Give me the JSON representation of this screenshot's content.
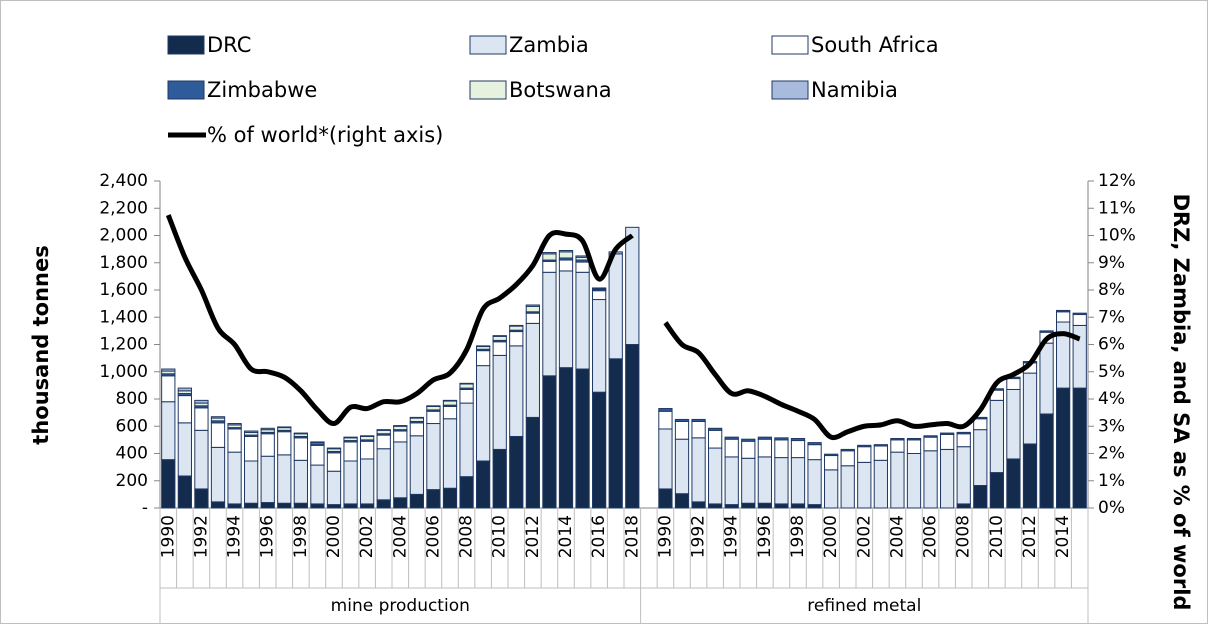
{
  "chart_data": {
    "type": "bar",
    "stacked": true,
    "ylabel": "thousand tonnes",
    "y2label": "DRZ, Zambia, and SA as % of world",
    "ylim": [
      0,
      2400
    ],
    "yticks": [
      {
        "value": 0,
        "label": "-"
      },
      200,
      400,
      600,
      800,
      {
        "value": 1000,
        "label": "1,000"
      },
      {
        "value": 1200,
        "label": "1,200"
      },
      {
        "value": 1400,
        "label": "1,400"
      },
      {
        "value": 1600,
        "label": "1,600"
      },
      {
        "value": 1800,
        "label": "1,800"
      },
      {
        "value": 2000,
        "label": "2,000"
      },
      {
        "value": 2200,
        "label": "2,200"
      },
      {
        "value": 2400,
        "label": "2,400"
      }
    ],
    "y2lim": [
      0,
      12
    ],
    "y2ticks": [
      {
        "value": 0,
        "label": "0%"
      },
      {
        "value": 1,
        "label": "1%"
      },
      {
        "value": 2,
        "label": "2%"
      },
      {
        "value": 3,
        "label": "3%"
      },
      {
        "value": 4,
        "label": "4%"
      },
      {
        "value": 5,
        "label": "5%"
      },
      {
        "value": 6,
        "label": "6%"
      },
      {
        "value": 7,
        "label": "7%"
      },
      {
        "value": 8,
        "label": "8%"
      },
      {
        "value": 9,
        "label": "9%"
      },
      {
        "value": 10,
        "label": "10%"
      },
      {
        "value": 11,
        "label": "11%"
      },
      {
        "value": 12,
        "label": "12%"
      }
    ],
    "grid": false,
    "legend": "top",
    "groups": [
      {
        "name": "mine production",
        "categories": [
          "1990",
          null,
          "1992",
          null,
          "1994",
          null,
          "1996",
          null,
          "1998",
          null,
          "2000",
          null,
          "2002",
          null,
          "2004",
          null,
          "2006",
          null,
          "2008",
          null,
          "2010",
          null,
          "2012",
          null,
          "2014",
          null,
          "2016",
          null,
          "2018"
        ]
      },
      {
        "name": "refined metal",
        "categories": [
          null,
          "1990",
          null,
          "1992",
          null,
          "1994",
          null,
          "1996",
          null,
          "1998",
          null,
          "2000",
          null,
          "2002",
          null,
          "2004",
          null,
          "2006",
          null,
          "2008",
          null,
          "2010",
          null,
          "2012",
          null,
          "2014",
          null
        ]
      }
    ],
    "series": [
      {
        "name": "DRC",
        "color": "#132c4e",
        "values": [
          355,
          235,
          140,
          45,
          30,
          35,
          40,
          35,
          35,
          30,
          25,
          30,
          30,
          60,
          75,
          100,
          135,
          145,
          230,
          345,
          430,
          525,
          665,
          970,
          1030,
          1020,
          850,
          1095,
          1200,
          null,
          140,
          105,
          45,
          30,
          25,
          35,
          35,
          30,
          30,
          25,
          0,
          0,
          0,
          0,
          0,
          0,
          0,
          0,
          30,
          165,
          260,
          360,
          470,
          690,
          880,
          880
        ]
      },
      {
        "name": "Zambia",
        "color": "#dce6f2",
        "values": [
          425,
          390,
          430,
          400,
          380,
          310,
          340,
          355,
          315,
          285,
          245,
          315,
          330,
          375,
          410,
          430,
          485,
          510,
          540,
          700,
          690,
          665,
          690,
          760,
          710,
          710,
          680,
          770,
          860,
          null,
          440,
          400,
          470,
          410,
          350,
          330,
          340,
          340,
          340,
          330,
          280,
          310,
          335,
          350,
          410,
          400,
          420,
          430,
          420,
          410,
          530,
          510,
          520,
          520,
          485,
          460
        ]
      },
      {
        "name": "South Africa",
        "color": "#ffffff",
        "values": [
          190,
          200,
          165,
          180,
          170,
          180,
          165,
          170,
          165,
          145,
          135,
          140,
          130,
          100,
          80,
          95,
          90,
          90,
          100,
          110,
          100,
          105,
          75,
          80,
          80,
          75,
          65,
          0,
          0,
          null,
          130,
          130,
          120,
          130,
          130,
          125,
          130,
          130,
          125,
          110,
          105,
          110,
          115,
          105,
          90,
          100,
          100,
          110,
          95,
          80,
          75,
          80,
          75,
          80,
          75,
          80
        ]
      },
      {
        "name": "Zimbabwe",
        "color": "#2e5c9a",
        "values": [
          15,
          15,
          15,
          15,
          10,
          10,
          10,
          10,
          10,
          10,
          10,
          10,
          10,
          10,
          10,
          10,
          10,
          10,
          10,
          10,
          10,
          10,
          10,
          10,
          15,
          15,
          10,
          0,
          0,
          null,
          20,
          15,
          15,
          15,
          15,
          15,
          15,
          15,
          15,
          15,
          10,
          10,
          10,
          10,
          10,
          10,
          10,
          10,
          10,
          10,
          10,
          10,
          10,
          10,
          10,
          10
        ]
      },
      {
        "name": "Botswana",
        "color": "#e6f2dd",
        "values": [
          20,
          20,
          20,
          20,
          20,
          20,
          20,
          20,
          20,
          10,
          20,
          20,
          25,
          25,
          25,
          25,
          25,
          30,
          30,
          20,
          30,
          30,
          40,
          45,
          45,
          20,
          5,
          0,
          0,
          null,
          0,
          0,
          0,
          0,
          0,
          0,
          0,
          0,
          0,
          0,
          0,
          0,
          0,
          0,
          0,
          0,
          0,
          0,
          0,
          0,
          0,
          0,
          0,
          0,
          0,
          0
        ]
      },
      {
        "name": "Namibia",
        "color": "#a9bbdc",
        "values": [
          15,
          20,
          20,
          10,
          10,
          10,
          10,
          5,
          5,
          5,
          5,
          5,
          5,
          5,
          5,
          5,
          5,
          5,
          5,
          5,
          5,
          5,
          10,
          10,
          10,
          10,
          5,
          15,
          0,
          null,
          0,
          0,
          0,
          0,
          0,
          0,
          0,
          0,
          0,
          0,
          0,
          0,
          0,
          0,
          0,
          0,
          0,
          0,
          0,
          0,
          0,
          0,
          0,
          0,
          0,
          0
        ]
      },
      {
        "name": "% of world*(right axis)",
        "type": "line",
        "axis": "y2",
        "color": "#000000",
        "values": [
          10.75,
          9.2,
          8.0,
          6.6,
          6.0,
          5.1,
          5.0,
          4.8,
          4.3,
          3.6,
          3.1,
          3.7,
          3.65,
          3.9,
          3.9,
          4.2,
          4.7,
          4.95,
          5.8,
          7.3,
          7.7,
          8.2,
          8.9,
          10.0,
          10.05,
          9.8,
          8.4,
          9.5,
          10.0,
          null,
          6.8,
          6.0,
          5.7,
          4.9,
          4.2,
          4.3,
          4.1,
          3.8,
          3.55,
          3.25,
          2.6,
          2.8,
          3.0,
          3.05,
          3.2,
          3.0,
          3.05,
          3.1,
          3.0,
          3.6,
          4.6,
          4.9,
          5.3,
          6.2,
          6.4,
          6.2
        ]
      }
    ]
  }
}
